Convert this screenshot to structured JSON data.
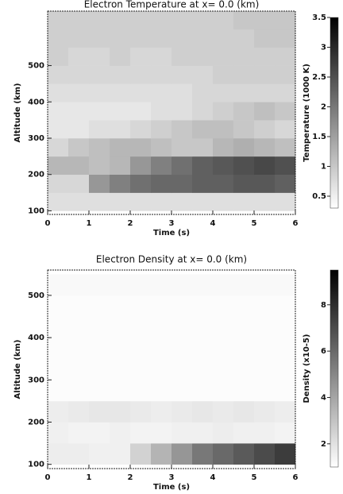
{
  "chart_data": [
    {
      "type": "heatmap",
      "title": "Electron Temperature at x= 0.0 (km)",
      "xlabel": "Time (s)",
      "ylabel": "Altitude (km)",
      "xlim": [
        0,
        6
      ],
      "xticks": [
        0,
        1,
        2,
        3,
        4,
        5,
        6
      ],
      "ylim": [
        90,
        650
      ],
      "yticks": [
        100,
        200,
        300,
        400,
        500
      ],
      "xbins": [
        0,
        0.5,
        1,
        1.5,
        2,
        2.5,
        3,
        3.5,
        4,
        4.5,
        5,
        5.5,
        6
      ],
      "ybins": [
        100,
        150,
        200,
        250,
        300,
        350,
        400,
        450,
        500,
        550,
        600,
        650
      ],
      "values": [
        [
          0.7,
          0.7,
          0.7,
          0.7,
          0.7,
          0.7,
          0.7,
          0.7,
          0.7,
          0.7,
          0.7,
          0.7
        ],
        [
          0.8,
          0.8,
          1.6,
          1.9,
          2.1,
          2.2,
          2.2,
          2.3,
          2.3,
          2.4,
          2.4,
          2.3
        ],
        [
          1.2,
          1.2,
          1.1,
          1.2,
          1.6,
          1.9,
          2.1,
          2.3,
          2.4,
          2.5,
          2.6,
          2.5
        ],
        [
          0.8,
          1.0,
          1.1,
          1.2,
          1.2,
          1.1,
          1.0,
          1.0,
          1.2,
          1.3,
          1.2,
          1.1
        ],
        [
          0.6,
          0.6,
          0.7,
          0.7,
          0.8,
          0.9,
          1.0,
          1.1,
          1.1,
          1.0,
          0.9,
          0.8
        ],
        [
          0.6,
          0.6,
          0.6,
          0.6,
          0.6,
          0.7,
          0.7,
          0.8,
          0.9,
          1.0,
          1.1,
          1.0
        ],
        [
          0.7,
          0.7,
          0.7,
          0.7,
          0.7,
          0.7,
          0.7,
          0.8,
          0.8,
          0.8,
          0.8,
          0.8
        ],
        [
          0.8,
          0.8,
          0.8,
          0.8,
          0.8,
          0.8,
          0.8,
          0.8,
          0.9,
          0.9,
          0.9,
          0.9
        ],
        [
          0.9,
          0.8,
          0.8,
          0.9,
          0.8,
          0.8,
          0.9,
          0.9,
          0.9,
          0.9,
          0.9,
          0.9
        ],
        [
          0.9,
          0.9,
          0.9,
          0.9,
          0.9,
          0.9,
          0.9,
          0.9,
          0.9,
          0.9,
          1.0,
          1.0
        ],
        [
          0.9,
          0.9,
          0.9,
          0.9,
          0.9,
          0.9,
          0.9,
          0.9,
          0.9,
          1.0,
          1.0,
          1.0
        ]
      ],
      "clabel": "Temperature (1000 K)",
      "clim": [
        0.3,
        3.5
      ],
      "cticks": [
        0.5,
        1.0,
        1.5,
        2.0,
        2.5,
        3.0,
        3.5
      ]
    },
    {
      "type": "heatmap",
      "title": "Electron Density at x= 0.0 (km)",
      "xlabel": "Time (s)",
      "ylabel": "Altitude (km)",
      "xlim": [
        0,
        6
      ],
      "xticks": [
        0,
        1,
        2,
        3,
        4,
        5,
        6
      ],
      "ylim": [
        90,
        560
      ],
      "yticks": [
        100,
        200,
        300,
        400,
        500
      ],
      "xbins": [
        0,
        0.5,
        1,
        1.5,
        2,
        2.5,
        3,
        3.5,
        4,
        4.5,
        5,
        5.5,
        6
      ],
      "ybins": [
        100,
        150,
        200,
        250,
        300,
        350,
        400,
        450,
        500,
        550
      ],
      "values": [
        [
          1.6,
          1.6,
          1.5,
          1.5,
          2.5,
          3.5,
          4.5,
          5.5,
          6.0,
          6.5,
          7.0,
          7.5
        ],
        [
          1.5,
          1.4,
          1.4,
          1.5,
          1.4,
          1.4,
          1.5,
          1.5,
          1.6,
          1.5,
          1.5,
          1.4
        ],
        [
          1.6,
          1.7,
          1.8,
          1.8,
          1.7,
          1.6,
          1.7,
          1.8,
          1.7,
          1.8,
          1.7,
          1.6
        ],
        [
          1.1,
          1.1,
          1.1,
          1.1,
          1.1,
          1.1,
          1.1,
          1.1,
          1.1,
          1.1,
          1.1,
          1.1
        ],
        [
          1.1,
          1.1,
          1.1,
          1.1,
          1.1,
          1.1,
          1.1,
          1.1,
          1.1,
          1.1,
          1.1,
          1.1
        ],
        [
          1.1,
          1.1,
          1.1,
          1.1,
          1.1,
          1.1,
          1.1,
          1.1,
          1.1,
          1.1,
          1.1,
          1.1
        ],
        [
          1.1,
          1.1,
          1.1,
          1.1,
          1.1,
          1.1,
          1.1,
          1.1,
          1.1,
          1.1,
          1.1,
          1.1
        ],
        [
          1.1,
          1.1,
          1.1,
          1.1,
          1.1,
          1.1,
          1.1,
          1.1,
          1.1,
          1.1,
          1.1,
          1.1
        ],
        [
          1.2,
          1.2,
          1.2,
          1.2,
          1.2,
          1.2,
          1.2,
          1.2,
          1.2,
          1.2,
          1.2,
          1.2
        ]
      ],
      "clabel": "Density (x10-5)",
      "clim": [
        1,
        9.5
      ],
      "cticks": [
        2,
        4,
        6,
        8
      ]
    }
  ]
}
